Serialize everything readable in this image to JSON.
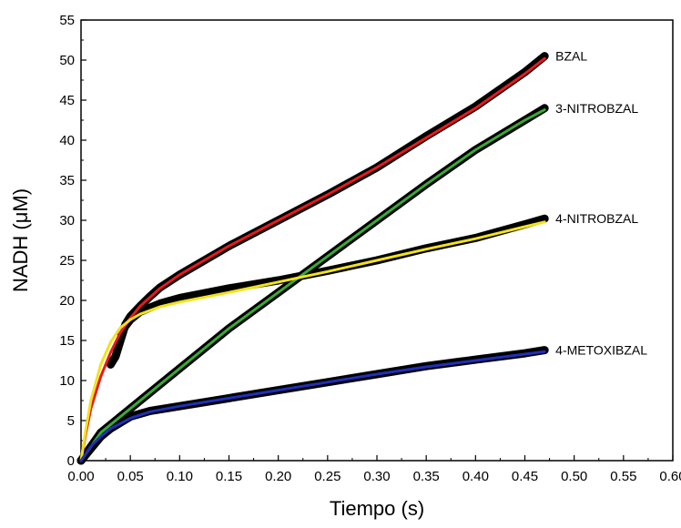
{
  "chart_data": {
    "type": "line",
    "xlabel": "Tiempo (s)",
    "ylabel": "NADH (μM)",
    "xlim": [
      0,
      0.6
    ],
    "ylim": [
      0,
      55
    ],
    "x_ticks": [
      "0.00",
      "0.05",
      "0.10",
      "0.15",
      "0.20",
      "0.25",
      "0.30",
      "0.35",
      "0.40",
      "0.45",
      "0.50",
      "0.55",
      "0.60"
    ],
    "y_ticks": [
      "0",
      "5",
      "10",
      "15",
      "20",
      "25",
      "30",
      "35",
      "40",
      "45",
      "50",
      "55"
    ],
    "grid": false,
    "series": [
      {
        "name": "BZAL",
        "data_color": "#000000",
        "fit_color": "#e8191c",
        "data": [
          [
            0.03,
            12
          ],
          [
            0.035,
            13
          ],
          [
            0.04,
            15
          ],
          [
            0.045,
            17
          ],
          [
            0.05,
            18
          ],
          [
            0.06,
            19.3
          ],
          [
            0.07,
            20.5
          ],
          [
            0.08,
            21.6
          ],
          [
            0.1,
            23.2
          ],
          [
            0.15,
            26.8
          ],
          [
            0.2,
            30
          ],
          [
            0.25,
            33.2
          ],
          [
            0.3,
            36.6
          ],
          [
            0.35,
            40.5
          ],
          [
            0.4,
            44.2
          ],
          [
            0.45,
            48.5
          ],
          [
            0.47,
            50.5
          ]
        ],
        "fit": [
          [
            0,
            0
          ],
          [
            0.005,
            3.5
          ],
          [
            0.01,
            6.5
          ],
          [
            0.02,
            10.5
          ],
          [
            0.03,
            13.5
          ],
          [
            0.04,
            16
          ],
          [
            0.05,
            17.8
          ],
          [
            0.06,
            19.3
          ],
          [
            0.08,
            21.5
          ],
          [
            0.1,
            23.2
          ],
          [
            0.15,
            26.8
          ],
          [
            0.2,
            30
          ],
          [
            0.25,
            33.2
          ],
          [
            0.3,
            36.6
          ],
          [
            0.35,
            40.3
          ],
          [
            0.4,
            44
          ],
          [
            0.45,
            48.3
          ],
          [
            0.47,
            50.2
          ]
        ]
      },
      {
        "name": "3-NITROBZAL",
        "data_color": "#000000",
        "fit_color": "#3aa935",
        "data": [
          [
            0,
            0
          ],
          [
            0.02,
            3.5
          ],
          [
            0.05,
            6.5
          ],
          [
            0.1,
            11.5
          ],
          [
            0.15,
            16.5
          ],
          [
            0.2,
            21
          ],
          [
            0.25,
            25.5
          ],
          [
            0.3,
            30
          ],
          [
            0.35,
            34.5
          ],
          [
            0.4,
            38.8
          ],
          [
            0.45,
            42.5
          ],
          [
            0.47,
            44
          ]
        ],
        "fit": [
          [
            0,
            0
          ],
          [
            0.02,
            3.5
          ],
          [
            0.05,
            6.5
          ],
          [
            0.1,
            11.5
          ],
          [
            0.15,
            16.5
          ],
          [
            0.2,
            21
          ],
          [
            0.25,
            25.5
          ],
          [
            0.3,
            30
          ],
          [
            0.35,
            34.5
          ],
          [
            0.4,
            38.8
          ],
          [
            0.45,
            42.5
          ],
          [
            0.47,
            43.8
          ]
        ]
      },
      {
        "name": "4-NITROBZAL",
        "data_color": "#000000",
        "fit_color": "#f2e21c",
        "data": [
          [
            0.04,
            16
          ],
          [
            0.05,
            17.6
          ],
          [
            0.06,
            18.6
          ],
          [
            0.08,
            19.6
          ],
          [
            0.1,
            20.3
          ],
          [
            0.15,
            21.5
          ],
          [
            0.2,
            22.5
          ],
          [
            0.25,
            23.7
          ],
          [
            0.3,
            25
          ],
          [
            0.35,
            26.5
          ],
          [
            0.4,
            27.8
          ],
          [
            0.45,
            29.5
          ],
          [
            0.47,
            30.2
          ]
        ],
        "fit": [
          [
            0,
            0
          ],
          [
            0.005,
            4
          ],
          [
            0.01,
            7.5
          ],
          [
            0.02,
            12
          ],
          [
            0.03,
            14.8
          ],
          [
            0.04,
            16.6
          ],
          [
            0.05,
            17.6
          ],
          [
            0.06,
            18.3
          ],
          [
            0.08,
            19.2
          ],
          [
            0.1,
            19.8
          ],
          [
            0.15,
            21
          ],
          [
            0.2,
            22.3
          ],
          [
            0.25,
            23.6
          ],
          [
            0.3,
            25
          ],
          [
            0.35,
            26.4
          ],
          [
            0.4,
            27.7
          ],
          [
            0.45,
            29.2
          ],
          [
            0.47,
            29.8
          ]
        ]
      },
      {
        "name": "4-METOXIBZAL",
        "data_color": "#000000",
        "fit_color": "#1f2fb8",
        "data": [
          [
            0,
            0
          ],
          [
            0.01,
            1.5
          ],
          [
            0.02,
            3
          ],
          [
            0.03,
            4
          ],
          [
            0.05,
            5.5
          ],
          [
            0.07,
            6.2
          ],
          [
            0.1,
            6.8
          ],
          [
            0.15,
            7.8
          ],
          [
            0.2,
            8.8
          ],
          [
            0.25,
            9.8
          ],
          [
            0.3,
            10.8
          ],
          [
            0.35,
            11.8
          ],
          [
            0.4,
            12.6
          ],
          [
            0.45,
            13.4
          ],
          [
            0.47,
            13.8
          ]
        ],
        "fit": [
          [
            0,
            0
          ],
          [
            0.01,
            1.8
          ],
          [
            0.02,
            3
          ],
          [
            0.03,
            4
          ],
          [
            0.05,
            5.3
          ],
          [
            0.07,
            6.1
          ],
          [
            0.1,
            6.8
          ],
          [
            0.15,
            7.8
          ],
          [
            0.2,
            8.8
          ],
          [
            0.25,
            9.8
          ],
          [
            0.3,
            10.8
          ],
          [
            0.35,
            11.7
          ],
          [
            0.4,
            12.5
          ],
          [
            0.45,
            13.3
          ],
          [
            0.47,
            13.6
          ]
        ]
      }
    ]
  }
}
